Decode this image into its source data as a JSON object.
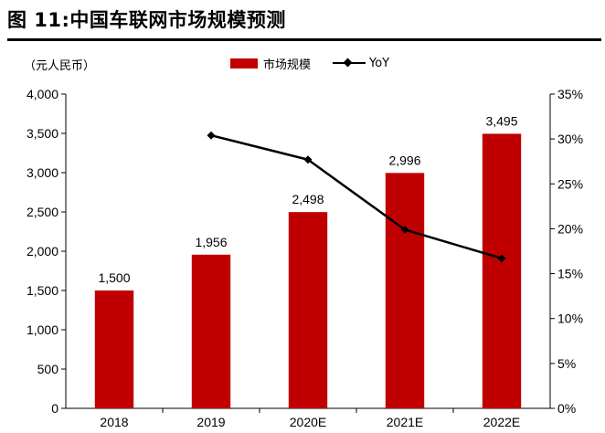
{
  "page": {
    "title": "图 11:中国车联网市场规模预测",
    "unit_label": "（元人民币）"
  },
  "colors": {
    "bar": "#c00000",
    "line": "#000000"
  },
  "chart_data": {
    "type": "bar",
    "categories": [
      "2018",
      "2019",
      "2020E",
      "2021E",
      "2022E"
    ],
    "series": [
      {
        "name": "市场规模",
        "type": "bar",
        "axis": "left",
        "values": [
          1500,
          1956,
          2498,
          2996,
          3495
        ]
      },
      {
        "name": "YoY",
        "type": "line",
        "axis": "right",
        "values": [
          null,
          30.4,
          27.7,
          19.9,
          16.7
        ]
      }
    ],
    "data_labels": [
      "1,500",
      "1,956",
      "2,498",
      "2,996",
      "3,495"
    ],
    "ylim": [
      0,
      4000
    ],
    "y_ticks": [
      "0",
      "500",
      "1,000",
      "1,500",
      "2,000",
      "2,500",
      "3,000",
      "3,500",
      "4,000"
    ],
    "y2lim": [
      0,
      35
    ],
    "y2_ticks": [
      "0%",
      "5%",
      "10%",
      "15%",
      "20%",
      "25%",
      "30%",
      "35%"
    ],
    "grid": false,
    "legend_position": "top-center"
  }
}
